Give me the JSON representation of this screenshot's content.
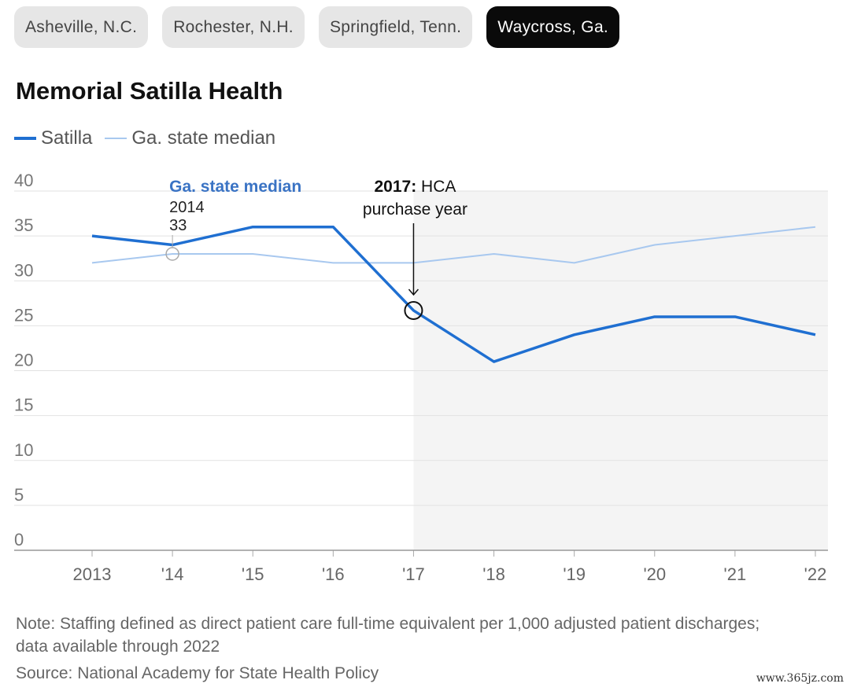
{
  "tabs": [
    {
      "label": "Asheville, N.C.",
      "active": false
    },
    {
      "label": "Rochester, N.H.",
      "active": false
    },
    {
      "label": "Springfield, Tenn.",
      "active": false
    },
    {
      "label": "Waycross, Ga.",
      "active": true
    }
  ],
  "colors": {
    "main": "#1f6fd1",
    "median": "#a8c8ef",
    "label_blue": "#3a73c4",
    "shade": "#f4f4f4"
  },
  "chart_data": {
    "type": "line",
    "title": "Memorial Satilla Health",
    "x": [
      "2013",
      "'14",
      "'15",
      "'16",
      "'17",
      "'18",
      "'19",
      "'20",
      "'21",
      "'22"
    ],
    "series": [
      {
        "name": "Satilla",
        "values": [
          35,
          34,
          36,
          36,
          26.7,
          21,
          24,
          26,
          26,
          24
        ]
      },
      {
        "name": "Ga. state median",
        "values": [
          32,
          33,
          33,
          32,
          32,
          33,
          32,
          34,
          35,
          36
        ]
      }
    ],
    "ylim": [
      0,
      40
    ],
    "yticks": [
      "0",
      "5",
      "10",
      "15",
      "20",
      "25",
      "30",
      "35",
      "40"
    ],
    "grid": true,
    "legend": "top-left",
    "shaded_from_index": 4,
    "annotations": {
      "median_label": {
        "title": "Ga. state median",
        "year": "2014",
        "value": "33",
        "index": 1,
        "series": 1
      },
      "event": {
        "bold": "2017:",
        "text": " HCA",
        "line2": "purchase year",
        "index": 4,
        "series": 0
      }
    }
  },
  "note": "Note: Staffing defined as direct patient care full-time equivalent per 1,000 adjusted patient discharges; data available through 2022",
  "source": "Source: National Academy for State Health Policy",
  "watermark": "www.365jz.com"
}
